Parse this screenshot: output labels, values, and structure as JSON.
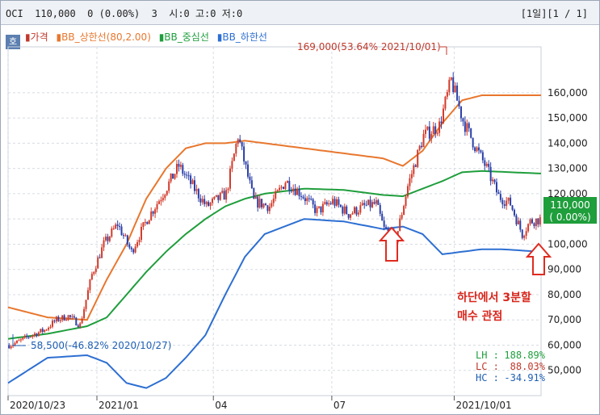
{
  "header": {
    "left": "OCI  110,000  0 (0.00%)  3  시:0 고:0 저:0",
    "right": "[1일][1 / 1]"
  },
  "badge": "호",
  "legend": [
    {
      "label": "▮가격",
      "color": "#c0392b"
    },
    {
      "label": "▮BB_상한선(80,2.00)",
      "color": "#e8772e"
    },
    {
      "label": "▮BB_중심선",
      "color": "#1f9e3c"
    },
    {
      "label": "▮BB_하한선",
      "color": "#2d6fd2"
    }
  ],
  "annotations": {
    "high": "169,000(53.64% 2021/10/01)",
    "low": "58,500(-46.82% 2020/10/27)"
  },
  "price_box": {
    "value": "110,000",
    "change": "( 0.00%)"
  },
  "stats": [
    {
      "label": "LH :",
      "value": "188.89%",
      "color": "#1f9e3c"
    },
    {
      "label": "LC :",
      "value": "88.03%",
      "color": "#c0392b"
    },
    {
      "label": "HC :",
      "value": "-34.91%",
      "color": "#1f5fb4"
    }
  ],
  "note": [
    "하단에서 3분할",
    "매수 관점"
  ],
  "chart_data": {
    "type": "line",
    "y_ticks": [
      "160,000",
      "150,000",
      "140,000",
      "130,000",
      "120,000",
      "110,000",
      "100,000",
      "90,000",
      "80,000",
      "70,000",
      "60,000",
      "50,000"
    ],
    "ylim": [
      40000,
      175000
    ],
    "x_ticks": [
      {
        "label": "2020/10/23",
        "i": 0
      },
      {
        "label": "2021/01",
        "i": 45
      },
      {
        "label": "04",
        "i": 104
      },
      {
        "label": "07",
        "i": 164
      },
      {
        "label": "2021/10/01",
        "i": 226
      }
    ],
    "x_count": 270,
    "series": [
      {
        "name": "가격",
        "color": "#2b3fa8",
        "points": [
          [
            0,
            60000
          ],
          [
            4,
            61000
          ],
          [
            10,
            63500
          ],
          [
            18,
            66000
          ],
          [
            24,
            70000
          ],
          [
            30,
            71500
          ],
          [
            36,
            68000
          ],
          [
            42,
            88000
          ],
          [
            48,
            100000
          ],
          [
            55,
            108000
          ],
          [
            62,
            97000
          ],
          [
            70,
            110000
          ],
          [
            78,
            120000
          ],
          [
            86,
            131000
          ],
          [
            93,
            123000
          ],
          [
            100,
            115000
          ],
          [
            110,
            120000
          ],
          [
            116,
            143000
          ],
          [
            124,
            117000
          ],
          [
            132,
            115000
          ],
          [
            140,
            125000
          ],
          [
            148,
            120000
          ],
          [
            156,
            113000
          ],
          [
            164,
            117000
          ],
          [
            172,
            112000
          ],
          [
            180,
            115000
          ],
          [
            186,
            116000
          ],
          [
            190,
            106000
          ],
          [
            196,
            102000
          ],
          [
            202,
            123000
          ],
          [
            210,
            143000
          ],
          [
            218,
            147000
          ],
          [
            224,
            165000
          ],
          [
            230,
            149000
          ],
          [
            236,
            139000
          ],
          [
            242,
            130000
          ],
          [
            248,
            119000
          ],
          [
            254,
            116000
          ],
          [
            260,
            104000
          ],
          [
            264,
            109000
          ],
          [
            270,
            110000
          ]
        ]
      },
      {
        "name": "BB_상한선(80,2.00)",
        "color": "#e8772e",
        "points": [
          [
            0,
            75000
          ],
          [
            20,
            71000
          ],
          [
            40,
            70000
          ],
          [
            50,
            86000
          ],
          [
            60,
            100000
          ],
          [
            70,
            118000
          ],
          [
            80,
            130000
          ],
          [
            90,
            138000
          ],
          [
            100,
            140000
          ],
          [
            110,
            140000
          ],
          [
            120,
            141000
          ],
          [
            130,
            140000
          ],
          [
            150,
            138000
          ],
          [
            170,
            136000
          ],
          [
            190,
            134000
          ],
          [
            200,
            131000
          ],
          [
            210,
            137000
          ],
          [
            220,
            148000
          ],
          [
            230,
            157000
          ],
          [
            240,
            159000
          ],
          [
            270,
            159000
          ]
        ]
      },
      {
        "name": "BB_중심선",
        "color": "#1f9e3c",
        "points": [
          [
            0,
            62500
          ],
          [
            20,
            64500
          ],
          [
            40,
            67500
          ],
          [
            50,
            71000
          ],
          [
            60,
            80000
          ],
          [
            70,
            89000
          ],
          [
            80,
            97000
          ],
          [
            90,
            104000
          ],
          [
            100,
            110000
          ],
          [
            110,
            115000
          ],
          [
            120,
            118000
          ],
          [
            130,
            120000
          ],
          [
            150,
            122000
          ],
          [
            170,
            121500
          ],
          [
            190,
            119500
          ],
          [
            200,
            119000
          ],
          [
            210,
            122000
          ],
          [
            220,
            125000
          ],
          [
            230,
            128500
          ],
          [
            240,
            129000
          ],
          [
            270,
            128000
          ]
        ]
      },
      {
        "name": "BB_하한선",
        "color": "#2d6fd2",
        "points": [
          [
            0,
            45000
          ],
          [
            20,
            55000
          ],
          [
            40,
            56000
          ],
          [
            50,
            53000
          ],
          [
            60,
            45000
          ],
          [
            70,
            43000
          ],
          [
            80,
            47000
          ],
          [
            90,
            55000
          ],
          [
            100,
            64000
          ],
          [
            110,
            80000
          ],
          [
            120,
            95000
          ],
          [
            130,
            104000
          ],
          [
            150,
            110000
          ],
          [
            170,
            109000
          ],
          [
            190,
            106000
          ],
          [
            200,
            107000
          ],
          [
            210,
            104000
          ],
          [
            220,
            96000
          ],
          [
            230,
            97000
          ],
          [
            240,
            98000
          ],
          [
            250,
            98000
          ],
          [
            270,
            97000
          ]
        ]
      }
    ]
  }
}
